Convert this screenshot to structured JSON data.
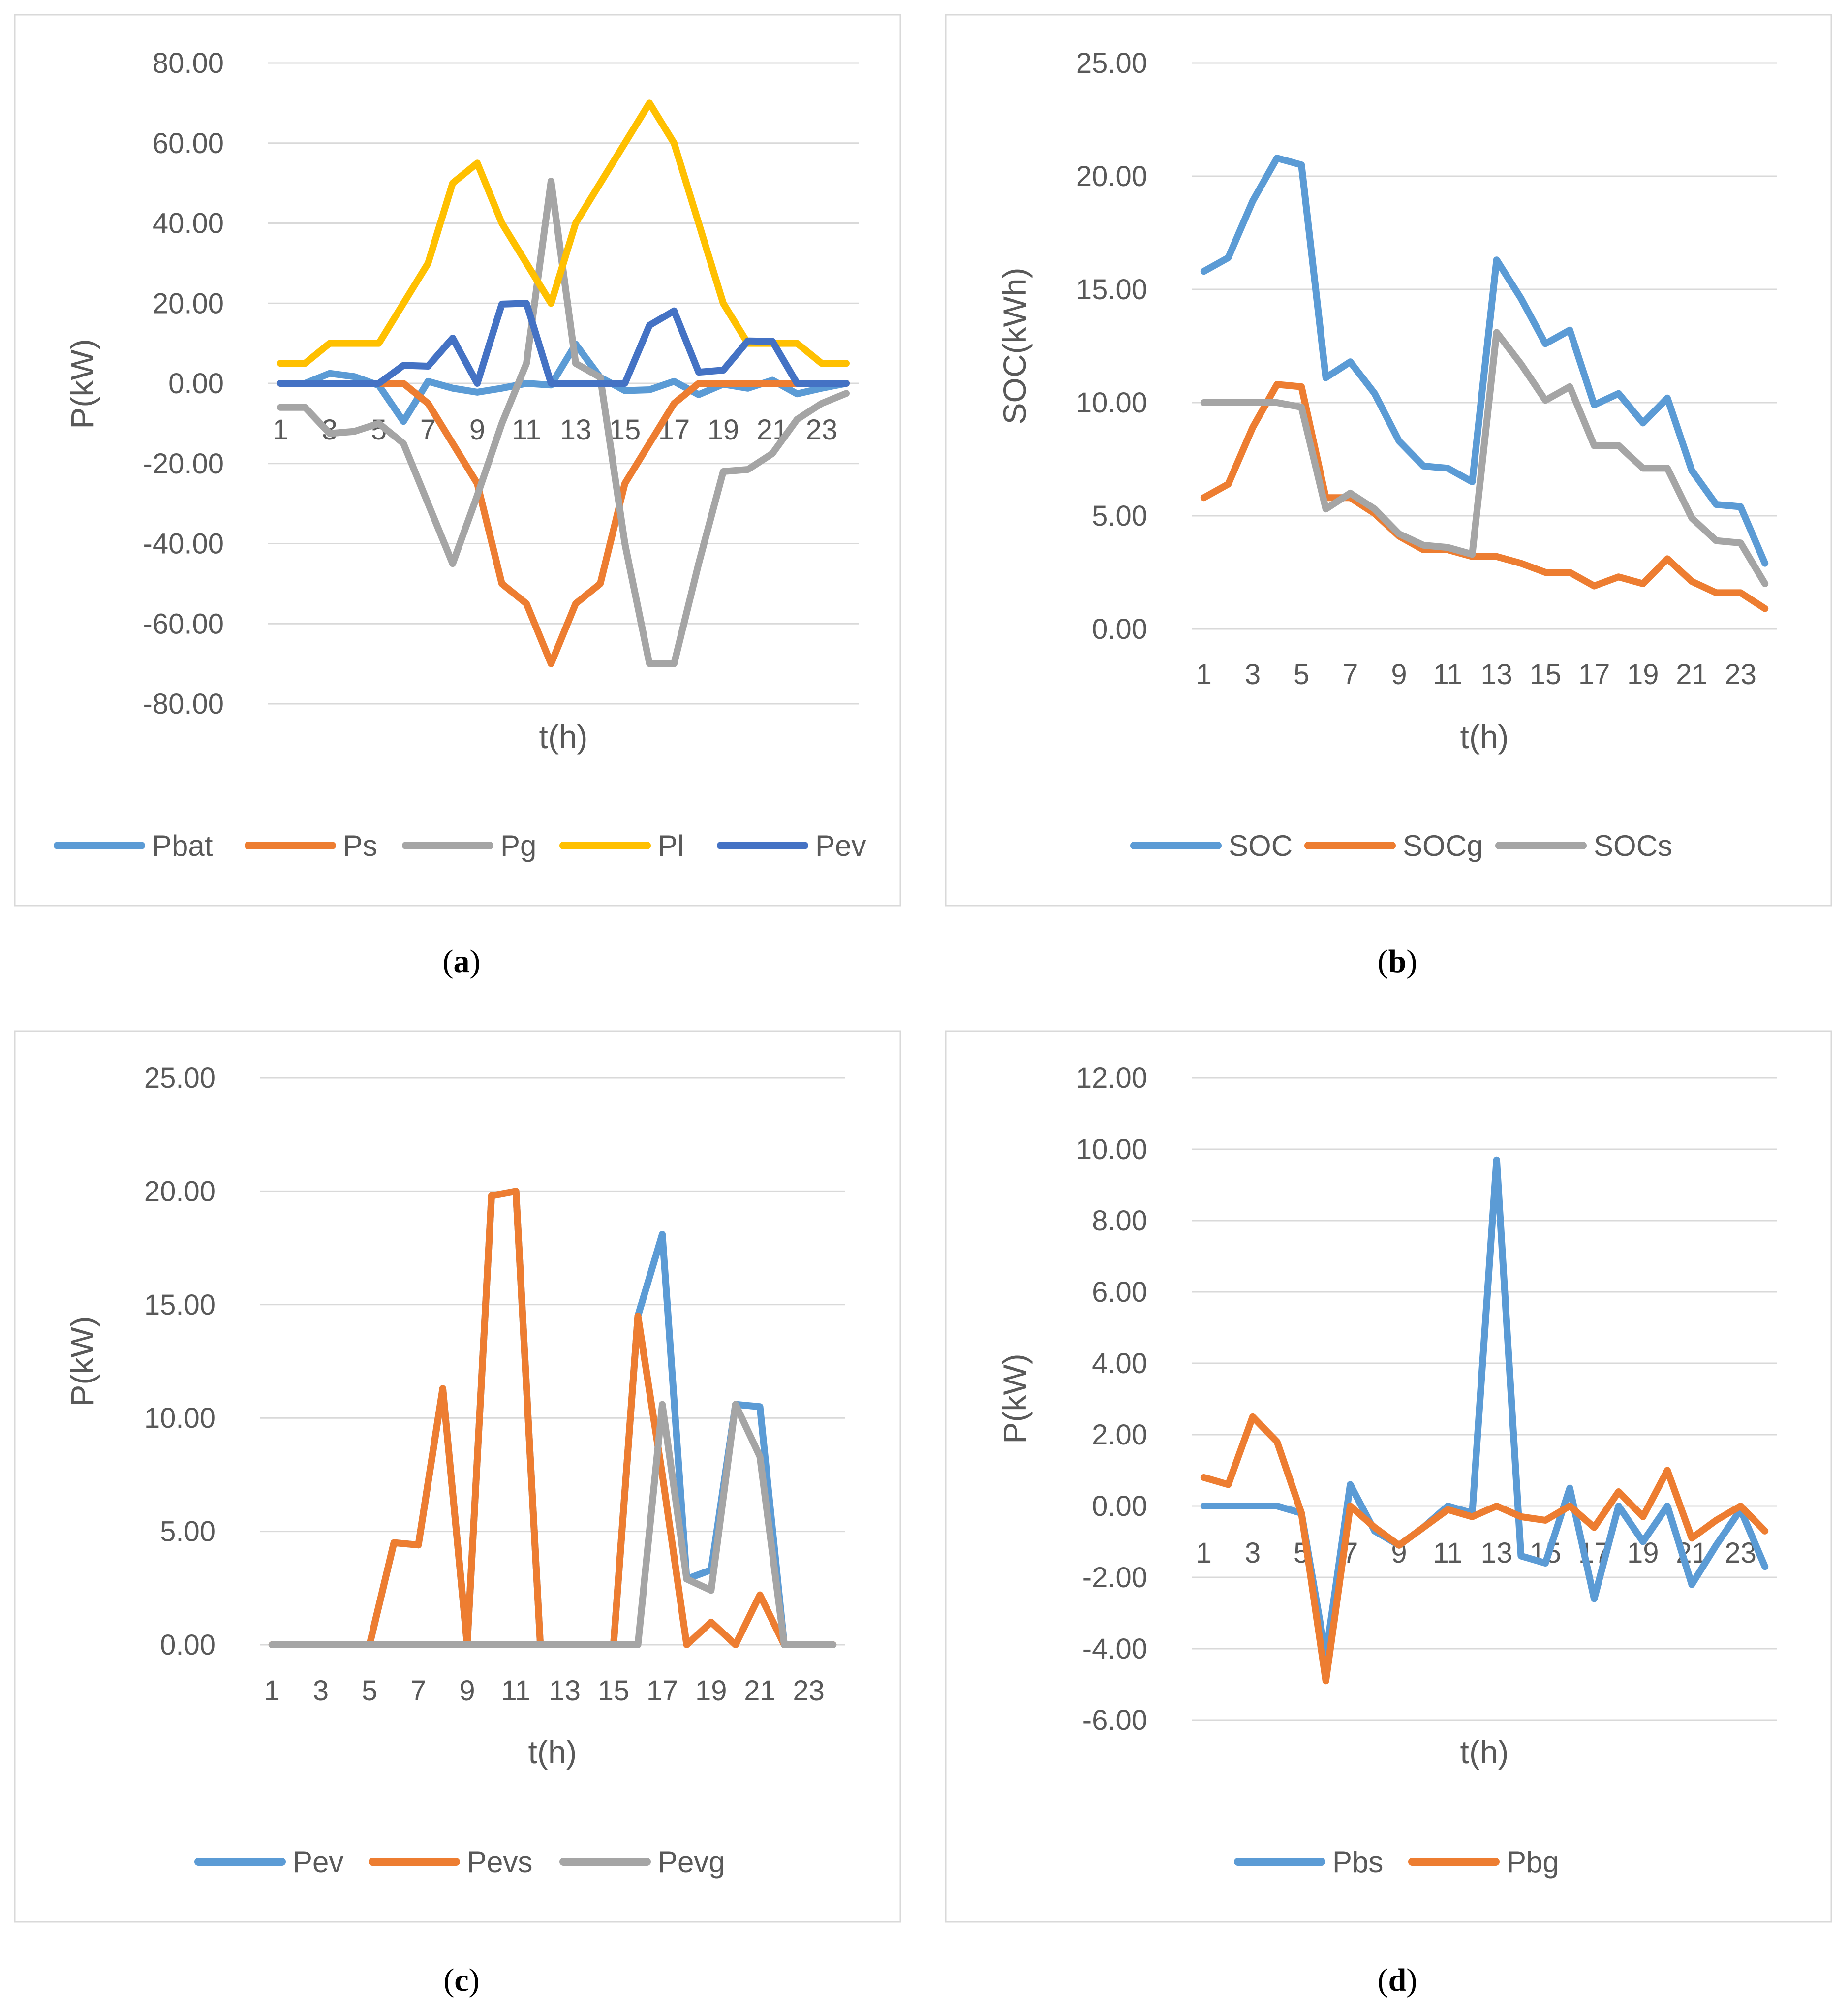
{
  "chart_data": [
    {
      "id": "a",
      "type": "line",
      "caption": "a",
      "xlabel": "t(h)",
      "ylabel": "P(kW)",
      "ylim": [
        -80,
        80
      ],
      "ytick_step": 20,
      "ytick_labels": [
        "80.00",
        "60.00",
        "40.00",
        "20.00",
        "0.00",
        "-20.00",
        "-40.00",
        "-60.00",
        "-80.00"
      ],
      "x": [
        1,
        2,
        3,
        4,
        5,
        6,
        7,
        8,
        9,
        10,
        11,
        12,
        13,
        14,
        15,
        16,
        17,
        18,
        19,
        20,
        21,
        22,
        23,
        24
      ],
      "xtick_labels": [
        "1",
        "3",
        "5",
        "7",
        "9",
        "11",
        "13",
        "15",
        "17",
        "19",
        "21",
        "23"
      ],
      "grid": true,
      "legend_position": "bottom",
      "series": [
        {
          "name": "Pbat",
          "color": "#5b9bd5",
          "values": [
            0,
            0,
            2.5,
            1.7,
            -0.5,
            -9.5,
            0.5,
            -1.2,
            -2.2,
            -1.2,
            0,
            -0.4,
            9.8,
            1.5,
            -1.8,
            -1.6,
            0.5,
            -2.8,
            -0.2,
            -1.2,
            0.8,
            -2.6,
            -1.2,
            0
          ]
        },
        {
          "name": "Ps",
          "color": "#ed7d31",
          "values": [
            0,
            0,
            0,
            0,
            0,
            0,
            -5,
            -15,
            -25,
            -50,
            -55,
            -70,
            -55,
            -50,
            -25,
            -15,
            -5,
            0,
            0,
            0,
            0,
            0,
            0,
            0
          ]
        },
        {
          "name": "Pg",
          "color": "#a5a5a5",
          "values": [
            -6,
            -6,
            -12.5,
            -12,
            -10,
            -15,
            -30,
            -45,
            -28,
            -10,
            5,
            50.5,
            5,
            1.5,
            -40,
            -70,
            -70,
            -45,
            -22,
            -21.5,
            -17.5,
            -9,
            -5,
            -2.5
          ]
        },
        {
          "name": "Pl",
          "color": "#ffc000",
          "values": [
            5,
            5,
            10,
            10,
            10,
            20,
            30,
            50,
            55,
            40,
            30,
            20,
            40,
            50,
            60,
            70,
            60,
            40,
            20,
            10,
            10,
            10,
            5,
            5
          ]
        },
        {
          "name": "Pev",
          "color": "#4472c4",
          "values": [
            0,
            0,
            0,
            0,
            0,
            4.5,
            4.3,
            11.3,
            0,
            19.8,
            20,
            0,
            0,
            0,
            0,
            14.5,
            18.1,
            2.8,
            3.3,
            10.6,
            10.5,
            0,
            0,
            0
          ]
        }
      ]
    },
    {
      "id": "b",
      "type": "line",
      "caption": "b",
      "xlabel": "t(h)",
      "ylabel": "SOC(kWh)",
      "ylim": [
        0,
        25
      ],
      "ytick_step": 5,
      "ytick_labels": [
        "25.00",
        "20.00",
        "15.00",
        "10.00",
        "5.00",
        "0.00"
      ],
      "x": [
        1,
        2,
        3,
        4,
        5,
        6,
        7,
        8,
        9,
        10,
        11,
        12,
        13,
        14,
        15,
        16,
        17,
        18,
        19,
        20,
        21,
        22,
        23,
        24
      ],
      "xtick_labels": [
        "1",
        "3",
        "5",
        "7",
        "9",
        "11",
        "13",
        "15",
        "17",
        "19",
        "21",
        "23"
      ],
      "grid": true,
      "legend_position": "bottom",
      "series": [
        {
          "name": "SOC",
          "color": "#5b9bd5",
          "values": [
            15.8,
            16.4,
            18.9,
            20.8,
            20.5,
            11.1,
            11.8,
            10.4,
            8.3,
            7.2,
            7.1,
            6.5,
            16.3,
            14.6,
            12.6,
            13.2,
            9.9,
            10.4,
            9.1,
            10.2,
            7.0,
            5.5,
            5.4,
            2.9
          ]
        },
        {
          "name": "SOCg",
          "color": "#ed7d31",
          "values": [
            5.8,
            6.4,
            8.9,
            10.8,
            10.7,
            5.8,
            5.8,
            5.1,
            4.1,
            3.5,
            3.5,
            3.2,
            3.2,
            2.9,
            2.5,
            2.5,
            1.9,
            2.3,
            2.0,
            3.1,
            2.1,
            1.6,
            1.6,
            0.9
          ]
        },
        {
          "name": "SOCs",
          "color": "#a5a5a5",
          "values": [
            10,
            10,
            10,
            10,
            9.8,
            5.3,
            6.0,
            5.3,
            4.2,
            3.7,
            3.6,
            3.3,
            13.1,
            11.7,
            10.1,
            10.7,
            8.1,
            8.1,
            7.1,
            7.1,
            4.9,
            3.9,
            3.8,
            2.0
          ]
        }
      ]
    },
    {
      "id": "c",
      "type": "line",
      "caption": "c",
      "xlabel": "t(h)",
      "ylabel": "P(kW)",
      "ylim": [
        0,
        25
      ],
      "ytick_step": 5,
      "ytick_labels": [
        "25.00",
        "20.00",
        "15.00",
        "10.00",
        "5.00",
        "0.00"
      ],
      "x": [
        1,
        2,
        3,
        4,
        5,
        6,
        7,
        8,
        9,
        10,
        11,
        12,
        13,
        14,
        15,
        16,
        17,
        18,
        19,
        20,
        21,
        22,
        23,
        24
      ],
      "xtick_labels": [
        "1",
        "3",
        "5",
        "7",
        "9",
        "11",
        "13",
        "15",
        "17",
        "19",
        "21",
        "23"
      ],
      "grid": true,
      "legend_position": "bottom",
      "series": [
        {
          "name": "Pev",
          "color": "#5b9bd5",
          "values": [
            0,
            0,
            0,
            0,
            0,
            4.5,
            4.4,
            11.3,
            0,
            19.8,
            20,
            0,
            0,
            0,
            0,
            14.5,
            18.1,
            2.9,
            3.3,
            10.6,
            10.5,
            0,
            0,
            0
          ]
        },
        {
          "name": "Pevs",
          "color": "#ed7d31",
          "values": [
            0,
            0,
            0,
            0,
            0,
            4.5,
            4.4,
            11.3,
            0,
            19.8,
            20,
            0,
            0,
            0,
            0,
            14.5,
            7.5,
            0,
            1.0,
            0,
            2.2,
            0,
            0,
            0
          ]
        },
        {
          "name": "Pevg",
          "color": "#a5a5a5",
          "values": [
            0,
            0,
            0,
            0,
            0,
            0,
            0,
            0,
            0,
            0,
            0,
            0,
            0,
            0,
            0,
            0,
            10.6,
            2.9,
            2.4,
            10.6,
            8.3,
            0,
            0,
            0
          ]
        }
      ]
    },
    {
      "id": "d",
      "type": "line",
      "caption": "d",
      "xlabel": "t(h)",
      "ylabel": "P(kW)",
      "ylim": [
        -6,
        12
      ],
      "ytick_step": 2,
      "ytick_labels": [
        "12.00",
        "10.00",
        "8.00",
        "6.00",
        "4.00",
        "2.00",
        "0.00",
        "-2.00",
        "-4.00",
        "-6.00"
      ],
      "x": [
        1,
        2,
        3,
        4,
        5,
        6,
        7,
        8,
        9,
        10,
        11,
        12,
        13,
        14,
        15,
        16,
        17,
        18,
        19,
        20,
        21,
        22,
        23,
        24
      ],
      "xtick_labels": [
        "1",
        "3",
        "5",
        "7",
        "9",
        "11",
        "13",
        "15",
        "17",
        "19",
        "21",
        "23"
      ],
      "grid": true,
      "legend_position": "bottom",
      "series": [
        {
          "name": "Pbs",
          "color": "#5b9bd5",
          "values": [
            0,
            0,
            0,
            0,
            -0.2,
            -4.2,
            0.6,
            -0.7,
            -1.1,
            -0.6,
            0,
            -0.2,
            9.7,
            -1.4,
            -1.6,
            0.5,
            -2.6,
            0,
            -1.0,
            0,
            -2.2,
            -1.1,
            -0.1,
            -1.7
          ]
        },
        {
          "name": "Pbg",
          "color": "#ed7d31",
          "values": [
            0.8,
            0.6,
            2.5,
            1.8,
            -0.2,
            -4.9,
            0,
            -0.6,
            -1.1,
            -0.6,
            -0.1,
            -0.3,
            0,
            -0.3,
            -0.4,
            0,
            -0.6,
            0.4,
            -0.3,
            1.0,
            -0.9,
            -0.4,
            0,
            -0.7
          ]
        }
      ]
    }
  ]
}
